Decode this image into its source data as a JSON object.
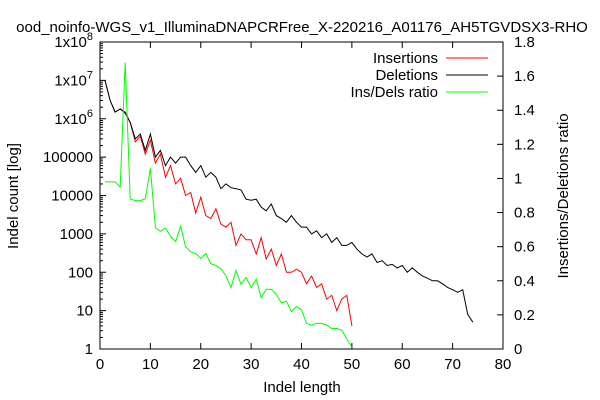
{
  "chart_data": {
    "type": "line",
    "title": "ood_noinfo-WGS_v1_IlluminaDNAPCRFree_X-220216_A01176_AH5TGVDSX3-RHO",
    "xlabel": "Indel length",
    "ylabel_left": "Indel count [log]",
    "ylabel_right": "Insertions/Deletions ratio",
    "xlim": [
      0,
      80
    ],
    "x_ticks": [
      "0",
      "10",
      "20",
      "30",
      "40",
      "50",
      "60",
      "70",
      "80"
    ],
    "ylim_left": [
      1,
      100000000
    ],
    "y_scale_left": "log",
    "y_ticks_left": [
      "1",
      "10",
      "100",
      "1000",
      "10000",
      "100000",
      "1x10^6",
      "1x10^7",
      "1x10^8"
    ],
    "y_tick_values_left": [
      1,
      10,
      100,
      1000,
      10000,
      100000,
      1000000,
      10000000,
      100000000
    ],
    "ylim_right": [
      0,
      1.8
    ],
    "y_ticks_right": [
      "0",
      "0.2",
      "0.4",
      "0.6",
      "0.8",
      "1",
      "1.2",
      "1.4",
      "1.6",
      "1.8"
    ],
    "y_tick_values_right": [
      0,
      0.2,
      0.4,
      0.6,
      0.8,
      1,
      1.2,
      1.4,
      1.6,
      1.8
    ],
    "legend_position": "top-right",
    "series": [
      {
        "name": "Insertions",
        "color": "#ff0000",
        "axis": "left",
        "x": [
          1,
          2,
          3,
          4,
          5,
          6,
          7,
          8,
          9,
          10,
          11,
          12,
          13,
          14,
          15,
          16,
          17,
          18,
          19,
          20,
          21,
          22,
          23,
          24,
          25,
          26,
          27,
          28,
          29,
          30,
          31,
          32,
          33,
          34,
          35,
          36,
          37,
          38,
          39,
          40,
          41,
          42,
          43,
          44,
          45,
          46,
          47,
          48,
          49,
          50
        ],
        "y": [
          10000000,
          3000000,
          1500000,
          1800000,
          1500000,
          800000,
          250000,
          350000,
          120000,
          280000,
          70000,
          120000,
          30000,
          60000,
          20000,
          28000,
          10000,
          12000,
          3500,
          9000,
          3000,
          2500,
          4500,
          1800,
          1500,
          2000,
          500,
          1000,
          700,
          700,
          300,
          800,
          220,
          400,
          150,
          300,
          100,
          100,
          120,
          100,
          50,
          80,
          40,
          50,
          20,
          25,
          10,
          20,
          25,
          4
        ]
      },
      {
        "name": "Deletions",
        "color": "#000000",
        "axis": "left",
        "x": [
          1,
          2,
          3,
          4,
          5,
          6,
          7,
          8,
          9,
          10,
          11,
          12,
          13,
          14,
          15,
          16,
          17,
          18,
          19,
          20,
          21,
          22,
          23,
          24,
          25,
          26,
          27,
          28,
          29,
          30,
          31,
          32,
          33,
          34,
          35,
          36,
          37,
          38,
          39,
          40,
          41,
          42,
          43,
          44,
          45,
          46,
          47,
          48,
          49,
          50,
          51,
          52,
          53,
          54,
          55,
          56,
          57,
          58,
          59,
          60,
          61,
          62,
          63,
          64,
          65,
          66,
          67,
          68,
          69,
          70,
          71,
          72,
          73,
          74
        ],
        "y": [
          10000000,
          3000000,
          1500000,
          1800000,
          1400000,
          800000,
          300000,
          400000,
          150000,
          400000,
          100000,
          150000,
          60000,
          100000,
          70000,
          100000,
          100000,
          60000,
          40000,
          60000,
          30000,
          40000,
          30000,
          15000,
          20000,
          16000,
          15000,
          14000,
          8000,
          7500,
          8000,
          5000,
          4000,
          6000,
          3000,
          2500,
          2000,
          3000,
          2000,
          1500,
          1500,
          1000,
          1200,
          800,
          1000,
          600,
          800,
          500,
          500,
          600,
          400,
          300,
          250,
          300,
          180,
          200,
          150,
          160,
          130,
          150,
          100,
          130,
          100,
          80,
          70,
          60,
          60,
          50,
          40,
          35,
          30,
          35,
          8,
          5
        ]
      },
      {
        "name": "Ins/Dels ratio",
        "color": "#00ff00",
        "axis": "right",
        "x": [
          1,
          2,
          3,
          4,
          5,
          6,
          7,
          8,
          9,
          10,
          11,
          12,
          13,
          14,
          15,
          16,
          17,
          18,
          19,
          20,
          21,
          22,
          23,
          24,
          25,
          26,
          27,
          28,
          29,
          30,
          31,
          32,
          33,
          34,
          35,
          36,
          37,
          38,
          39,
          40,
          41,
          42,
          43,
          44,
          45,
          46,
          47,
          48,
          49,
          50
        ],
        "y": [
          0.98,
          0.98,
          0.98,
          0.95,
          1.68,
          0.88,
          0.87,
          0.87,
          0.88,
          1.06,
          0.71,
          0.69,
          0.71,
          0.66,
          0.63,
          0.72,
          0.6,
          0.57,
          0.56,
          0.53,
          0.56,
          0.5,
          0.49,
          0.47,
          0.43,
          0.36,
          0.46,
          0.38,
          0.42,
          0.36,
          0.41,
          0.3,
          0.35,
          0.35,
          0.32,
          0.27,
          0.28,
          0.22,
          0.25,
          0.23,
          0.15,
          0.14,
          0.15,
          0.15,
          0.14,
          0.12,
          0.12,
          0.11,
          0.06,
          0.01
        ]
      }
    ]
  }
}
